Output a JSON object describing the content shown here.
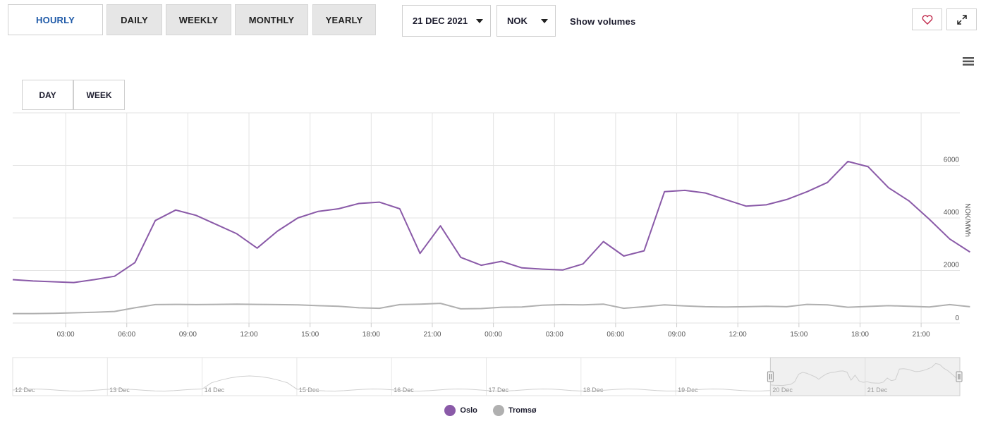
{
  "toolbar": {
    "periods": [
      "HOURLY",
      "DAILY",
      "WEEKLY",
      "MONTHLY",
      "YEARLY"
    ],
    "active_period": "HOURLY",
    "date_value": "21 DEC 2021",
    "currency_value": "NOK",
    "show_volumes_label": "Show volumes"
  },
  "range_buttons": [
    "DAY",
    "WEEK"
  ],
  "colors": {
    "oslo": "#8a5aa8",
    "tromso": "#b0b0b0",
    "grid": "#e3e3e3"
  },
  "chart_data": {
    "type": "line",
    "x_tick_labels": [
      "03:00",
      "06:00",
      "09:00",
      "12:00",
      "15:00",
      "18:00",
      "21:00",
      "00:00",
      "03:00",
      "06:00",
      "09:00",
      "12:00",
      "15:00",
      "18:00",
      "21:00"
    ],
    "ylabel": "NOK/MWh",
    "ylim": [
      0,
      8000
    ],
    "y_ticks": [
      0,
      2000,
      4000,
      6000
    ],
    "grid": true,
    "legend_position": "bottom-center",
    "hours": [
      0,
      1,
      2,
      3,
      4,
      5,
      6,
      7,
      8,
      9,
      10,
      11,
      12,
      13,
      14,
      15,
      16,
      17,
      18,
      19,
      20,
      21,
      22,
      23,
      24,
      25,
      26,
      27,
      28,
      29,
      30,
      31,
      32,
      33,
      34,
      35,
      36,
      37,
      38,
      39,
      40,
      41,
      42,
      43,
      44,
      45,
      46,
      47
    ],
    "series": [
      {
        "name": "Oslo",
        "values": [
          1650,
          1600,
          1570,
          1540,
          1650,
          1780,
          2300,
          3900,
          4300,
          4100,
          3750,
          3400,
          2850,
          3500,
          4000,
          4250,
          4350,
          4550,
          4600,
          4350,
          2650,
          3700,
          2500,
          2200,
          2350,
          2100,
          2050,
          2020,
          2250,
          3100,
          2550,
          2750,
          5000,
          5050,
          4950,
          4700,
          4450,
          4500,
          4700,
          5000,
          5350,
          6150,
          5950,
          5150,
          4650,
          3950,
          3200,
          2700
        ]
      },
      {
        "name": "Tromsø",
        "values": [
          360,
          360,
          370,
          390,
          410,
          440,
          580,
          700,
          710,
          700,
          710,
          720,
          710,
          700,
          690,
          660,
          640,
          580,
          560,
          700,
          720,
          750,
          540,
          550,
          600,
          610,
          680,
          700,
          690,
          720,
          560,
          620,
          690,
          650,
          620,
          610,
          620,
          640,
          620,
          710,
          690,
          600,
          630,
          660,
          640,
          610,
          700,
          620
        ]
      }
    ]
  },
  "navigator": {
    "labels": [
      "12 Dec",
      "13 Dec",
      "14 Dec",
      "15 Dec",
      "16 Dec",
      "17 Dec",
      "18 Dec",
      "19 Dec",
      "20 Dec",
      "21 Dec"
    ]
  },
  "legend": [
    {
      "name": "Oslo",
      "color": "#8a5aa8"
    },
    {
      "name": "Tromsø",
      "color": "#b0b0b0"
    }
  ]
}
